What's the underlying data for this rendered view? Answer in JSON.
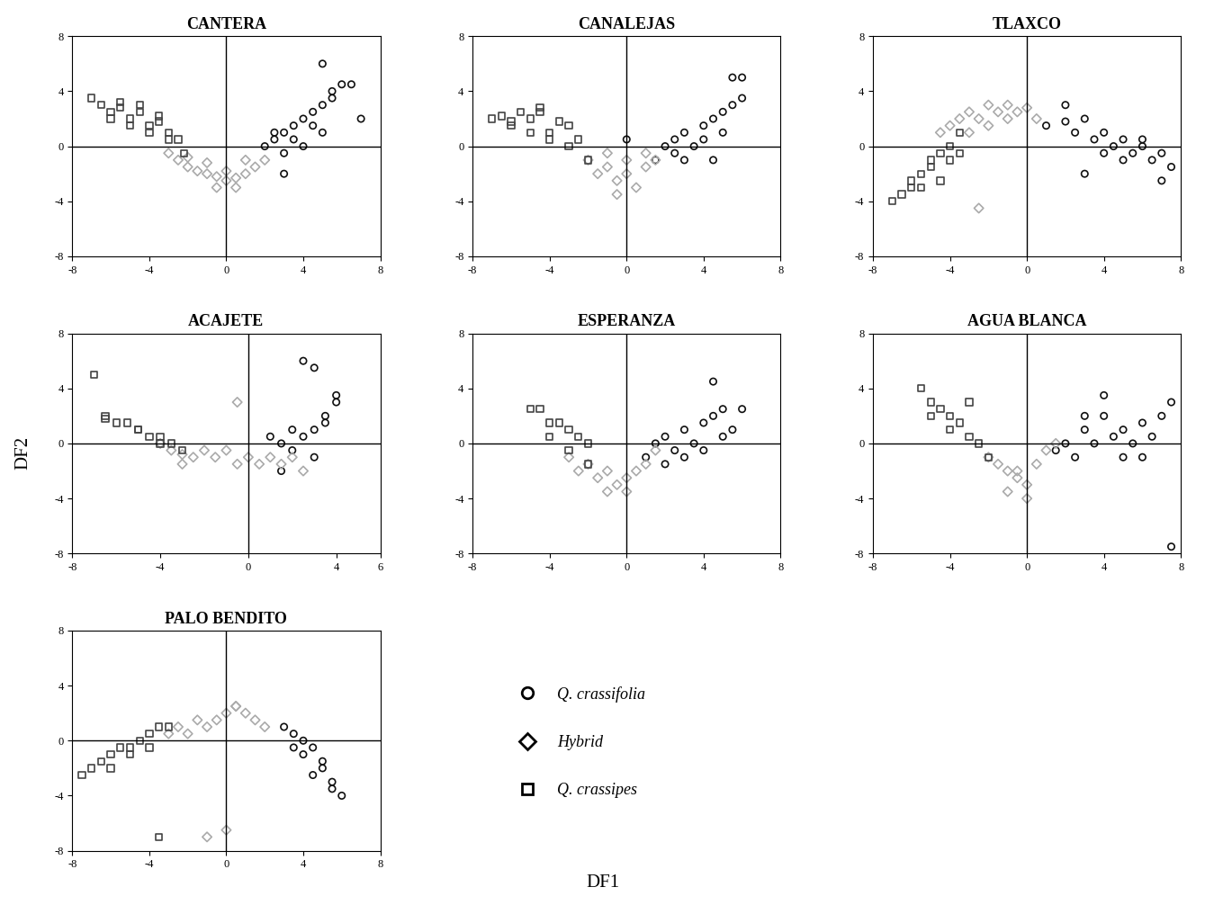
{
  "xlabel": "DF1",
  "ylabel": "DF2",
  "chart_data": [
    {
      "type": "scatter",
      "title": "CANTERA",
      "xlim": [
        -8,
        8
      ],
      "ylim": [
        -8,
        8
      ],
      "xticks": [
        -8,
        -4,
        0,
        4,
        8
      ],
      "yticks": [
        -8,
        -4,
        0,
        4,
        8
      ],
      "series": [
        {
          "name": "Q. crassifolia",
          "color": "#111111",
          "marker": "circle",
          "x": [
            2,
            2.5,
            3,
            3,
            3.5,
            4,
            4,
            4.5,
            5,
            5,
            5.5,
            6,
            2.5,
            3.5,
            4.5,
            5,
            6.5,
            7,
            3,
            5.5
          ],
          "values": [
            0,
            0.5,
            1,
            -0.5,
            1.5,
            0,
            2,
            2.5,
            3,
            1,
            3.5,
            4.5,
            1,
            0.5,
            1.5,
            6,
            4.5,
            2,
            -2,
            4
          ]
        },
        {
          "name": "Hybrid",
          "color": "#aaaaaa",
          "marker": "diamond",
          "x": [
            -3,
            -2.5,
            -2,
            -1.5,
            -1,
            -0.5,
            0,
            0.5,
            1,
            1.5,
            2,
            -2,
            -1,
            0,
            1,
            -0.5,
            0.5
          ],
          "values": [
            -0.5,
            -1,
            -1.5,
            -1.8,
            -2,
            -2.2,
            -2.5,
            -2.3,
            -2,
            -1.5,
            -1,
            -0.8,
            -1.2,
            -1.8,
            -1,
            -3,
            -3
          ]
        },
        {
          "name": "Q. crassipes",
          "color": "#444444",
          "marker": "square",
          "x": [
            -7,
            -6.5,
            -6,
            -5.5,
            -5,
            -4.5,
            -4,
            -3.5,
            -3,
            -2.5,
            -6,
            -5,
            -4,
            -3,
            -2.2,
            -5.5,
            -4.5,
            -3.5
          ],
          "values": [
            3.5,
            3,
            2.5,
            2.8,
            2,
            2.5,
            1.5,
            1.8,
            1,
            0.5,
            2,
            1.5,
            1,
            0.5,
            -0.5,
            3.2,
            3,
            2.2
          ]
        }
      ]
    },
    {
      "type": "scatter",
      "title": "CANALEJAS",
      "xlim": [
        -8,
        8
      ],
      "ylim": [
        -8,
        8
      ],
      "xticks": [
        -8,
        -4,
        0,
        4,
        8
      ],
      "yticks": [
        -8,
        -4,
        0,
        4,
        8
      ],
      "series": [
        {
          "name": "Q. crassifolia",
          "color": "#111111",
          "marker": "circle",
          "x": [
            1.5,
            2,
            2.5,
            3,
            3.5,
            4,
            4.5,
            5,
            5.5,
            6,
            3,
            4,
            5,
            2.5,
            4.5,
            6,
            5.5,
            0
          ],
          "values": [
            -1,
            0,
            -0.5,
            1,
            0,
            1.5,
            2,
            1,
            3,
            5,
            -1,
            0.5,
            2.5,
            0.5,
            -1,
            3.5,
            5,
            0.5
          ]
        },
        {
          "name": "Hybrid",
          "color": "#aaaaaa",
          "marker": "diamond",
          "x": [
            -2,
            -1.5,
            -1,
            -0.5,
            0,
            0.5,
            1,
            1.5,
            -1,
            0,
            1,
            -0.5
          ],
          "values": [
            -1,
            -2,
            -1.5,
            -2.5,
            -2,
            -3,
            -1.5,
            -1,
            -0.5,
            -1,
            -0.5,
            -3.5
          ]
        },
        {
          "name": "Q. crassipes",
          "color": "#444444",
          "marker": "square",
          "x": [
            -7,
            -6.5,
            -6,
            -5.5,
            -5,
            -4.5,
            -4,
            -3.5,
            -3,
            -2.5,
            -5,
            -4,
            -3,
            -2,
            -6,
            -4.5
          ],
          "values": [
            2,
            2.2,
            1.5,
            2.5,
            2,
            2.8,
            1,
            1.8,
            1.5,
            0.5,
            1,
            0.5,
            0,
            -1,
            1.8,
            2.5
          ]
        }
      ]
    },
    {
      "type": "scatter",
      "title": "TLAXCO",
      "xlim": [
        -8,
        8
      ],
      "ylim": [
        -8,
        8
      ],
      "xticks": [
        -8,
        -4,
        0,
        4,
        8
      ],
      "yticks": [
        -8,
        -4,
        0,
        4,
        8
      ],
      "series": [
        {
          "name": "Q. crassifolia",
          "color": "#111111",
          "marker": "circle",
          "x": [
            1,
            2,
            2.5,
            3,
            3.5,
            4,
            4.5,
            5,
            5.5,
            6,
            6.5,
            7,
            7.5,
            3,
            4,
            5,
            6,
            7,
            2
          ],
          "values": [
            1.5,
            3,
            1,
            2,
            0.5,
            1,
            0,
            0.5,
            -0.5,
            0,
            -1,
            -0.5,
            -1.5,
            -2,
            -0.5,
            -1,
            0.5,
            -2.5,
            1.8
          ]
        },
        {
          "name": "Hybrid",
          "color": "#aaaaaa",
          "marker": "diamond",
          "x": [
            -4.5,
            -4,
            -3.5,
            -3,
            -2.5,
            -2,
            -1.5,
            -1,
            -0.5,
            0,
            0.5,
            -3,
            -2,
            -1,
            -2.5
          ],
          "values": [
            1,
            1.5,
            2,
            2.5,
            2,
            3,
            2.5,
            3,
            2.5,
            2.8,
            2,
            1,
            1.5,
            2,
            -4.5
          ]
        },
        {
          "name": "Q. crassipes",
          "color": "#444444",
          "marker": "square",
          "x": [
            -7,
            -6.5,
            -6,
            -5.5,
            -5,
            -4.5,
            -4,
            -3.5,
            -6,
            -5,
            -4,
            -5.5,
            -4.5,
            -3.5
          ],
          "values": [
            -4,
            -3.5,
            -2.5,
            -2,
            -1,
            -0.5,
            0,
            1,
            -3,
            -1.5,
            -1,
            -3,
            -2.5,
            -0.5
          ]
        }
      ]
    },
    {
      "type": "scatter",
      "title": "ACAJETE",
      "xlim": [
        -8,
        6
      ],
      "ylim": [
        -8,
        8
      ],
      "xticks": [
        -8,
        -4,
        0,
        4,
        6
      ],
      "yticks": [
        -8,
        -4,
        0,
        4,
        8
      ],
      "series": [
        {
          "name": "Q. crassifolia",
          "color": "#111111",
          "marker": "circle",
          "x": [
            1,
            1.5,
            2,
            2.5,
            3,
            3,
            3.5,
            3.5,
            4,
            4,
            2.5,
            3,
            2,
            1.5
          ],
          "values": [
            0.5,
            0,
            1,
            0.5,
            1,
            -1,
            2,
            1.5,
            3,
            3.5,
            6,
            5.5,
            -0.5,
            -2
          ]
        },
        {
          "name": "Hybrid",
          "color": "#aaaaaa",
          "marker": "diamond",
          "x": [
            -4,
            -3.5,
            -3,
            -2.5,
            -2,
            -1.5,
            -1,
            -0.5,
            0,
            0.5,
            1,
            1.5,
            2,
            -0.5,
            -3,
            2.5
          ],
          "values": [
            0,
            -0.5,
            -0.8,
            -1,
            -0.5,
            -1,
            -0.5,
            -1.5,
            -1,
            -1.5,
            -1,
            -1.5,
            -1,
            3,
            -1.5,
            -2
          ]
        },
        {
          "name": "Q. crassipes",
          "color": "#444444",
          "marker": "square",
          "x": [
            -7,
            -6.5,
            -6,
            -5.5,
            -5,
            -4.5,
            -4,
            -3.5,
            -3,
            -6.5,
            -5,
            -4
          ],
          "values": [
            5,
            2,
            1.5,
            1.5,
            1,
            0.5,
            0.5,
            0,
            -0.5,
            1.8,
            1,
            0
          ]
        }
      ]
    },
    {
      "type": "scatter",
      "title": "ESPERANZA",
      "xlim": [
        -8,
        8
      ],
      "ylim": [
        -8,
        8
      ],
      "xticks": [
        -8,
        -4,
        0,
        4,
        8
      ],
      "yticks": [
        -8,
        -4,
        0,
        4,
        8
      ],
      "series": [
        {
          "name": "Q. crassifolia",
          "color": "#111111",
          "marker": "circle",
          "x": [
            1,
            1.5,
            2,
            2.5,
            3,
            3.5,
            4,
            4.5,
            5,
            5.5,
            3,
            4,
            5,
            6,
            2,
            4.5
          ],
          "values": [
            -1,
            0,
            0.5,
            -0.5,
            1,
            0,
            1.5,
            2,
            2.5,
            1,
            -1,
            -0.5,
            0.5,
            2.5,
            -1.5,
            4.5
          ]
        },
        {
          "name": "Hybrid",
          "color": "#aaaaaa",
          "marker": "diamond",
          "x": [
            -3,
            -2.5,
            -2,
            -1.5,
            -1,
            -0.5,
            0,
            0.5,
            1,
            -1,
            0,
            1.5
          ],
          "values": [
            -1,
            -2,
            -1.5,
            -2.5,
            -2,
            -3,
            -2.5,
            -2,
            -1.5,
            -3.5,
            -3.5,
            -0.5
          ]
        },
        {
          "name": "Q. crassipes",
          "color": "#444444",
          "marker": "square",
          "x": [
            -5,
            -4.5,
            -4,
            -3.5,
            -3,
            -2.5,
            -2,
            -4,
            -3,
            -2
          ],
          "values": [
            2.5,
            2.5,
            1.5,
            1.5,
            1,
            0.5,
            0,
            0.5,
            -0.5,
            -1.5
          ]
        }
      ]
    },
    {
      "type": "scatter",
      "title": "AGUA BLANCA",
      "xlim": [
        -8,
        8
      ],
      "ylim": [
        -8,
        8
      ],
      "xticks": [
        -8,
        -4,
        0,
        4,
        8
      ],
      "yticks": [
        -8,
        -4,
        0,
        4,
        8
      ],
      "series": [
        {
          "name": "Q. crassifolia",
          "color": "#111111",
          "marker": "circle",
          "x": [
            1.5,
            2,
            2.5,
            3,
            3.5,
            4,
            4.5,
            5,
            5.5,
            6,
            6.5,
            7,
            7.5,
            3,
            4,
            5,
            6,
            7.5
          ],
          "values": [
            -0.5,
            0,
            -1,
            1,
            0,
            2,
            0.5,
            1,
            0,
            1.5,
            0.5,
            2,
            3,
            2,
            3.5,
            -1,
            -1,
            -7.5
          ]
        },
        {
          "name": "Hybrid",
          "color": "#aaaaaa",
          "marker": "diamond",
          "x": [
            -2,
            -1.5,
            -1,
            -0.5,
            0,
            0.5,
            1,
            -1,
            0,
            -0.5,
            1.5
          ],
          "values": [
            -1,
            -1.5,
            -2,
            -2.5,
            -3,
            -1.5,
            -0.5,
            -3.5,
            -4,
            -2,
            0
          ]
        },
        {
          "name": "Q. crassipes",
          "color": "#444444",
          "marker": "square",
          "x": [
            -5.5,
            -5,
            -4.5,
            -4,
            -3.5,
            -3,
            -2.5,
            -2,
            -5,
            -4,
            -3
          ],
          "values": [
            4,
            3,
            2.5,
            2,
            1.5,
            0.5,
            0,
            -1,
            2,
            1,
            3
          ]
        }
      ]
    },
    {
      "type": "scatter",
      "title": "PALO BENDITO",
      "xlim": [
        -8,
        8
      ],
      "ylim": [
        -8,
        8
      ],
      "xticks": [
        -8,
        -4,
        0,
        4,
        8
      ],
      "yticks": [
        -8,
        -4,
        0,
        4,
        8
      ],
      "series": [
        {
          "name": "Q. crassifolia",
          "color": "#111111",
          "marker": "circle",
          "x": [
            3,
            3.5,
            4,
            4,
            4.5,
            5,
            5,
            5.5,
            6,
            3.5,
            4.5,
            5.5
          ],
          "values": [
            1,
            0.5,
            0,
            -1,
            -0.5,
            -1.5,
            -2,
            -3,
            -4,
            -0.5,
            -2.5,
            -3.5
          ]
        },
        {
          "name": "Hybrid",
          "color": "#aaaaaa",
          "marker": "diamond",
          "x": [
            -3,
            -2.5,
            -2,
            -1.5,
            -1,
            -0.5,
            0,
            0.5,
            1,
            1.5,
            2,
            -1,
            0.5,
            0
          ],
          "values": [
            0.5,
            1,
            0.5,
            1.5,
            1,
            1.5,
            2,
            2.5,
            2,
            1.5,
            1,
            -7,
            2.5,
            -6.5
          ]
        },
        {
          "name": "Q. crassipes",
          "color": "#444444",
          "marker": "square",
          "x": [
            -7.5,
            -7,
            -6.5,
            -6,
            -5.5,
            -5,
            -4.5,
            -4,
            -3.5,
            -3,
            -6,
            -5,
            -4,
            -3.5
          ],
          "values": [
            -2.5,
            -2,
            -1.5,
            -1,
            -0.5,
            -0.5,
            0,
            0.5,
            1,
            1,
            -2,
            -1,
            -0.5,
            -7
          ]
        }
      ]
    }
  ]
}
